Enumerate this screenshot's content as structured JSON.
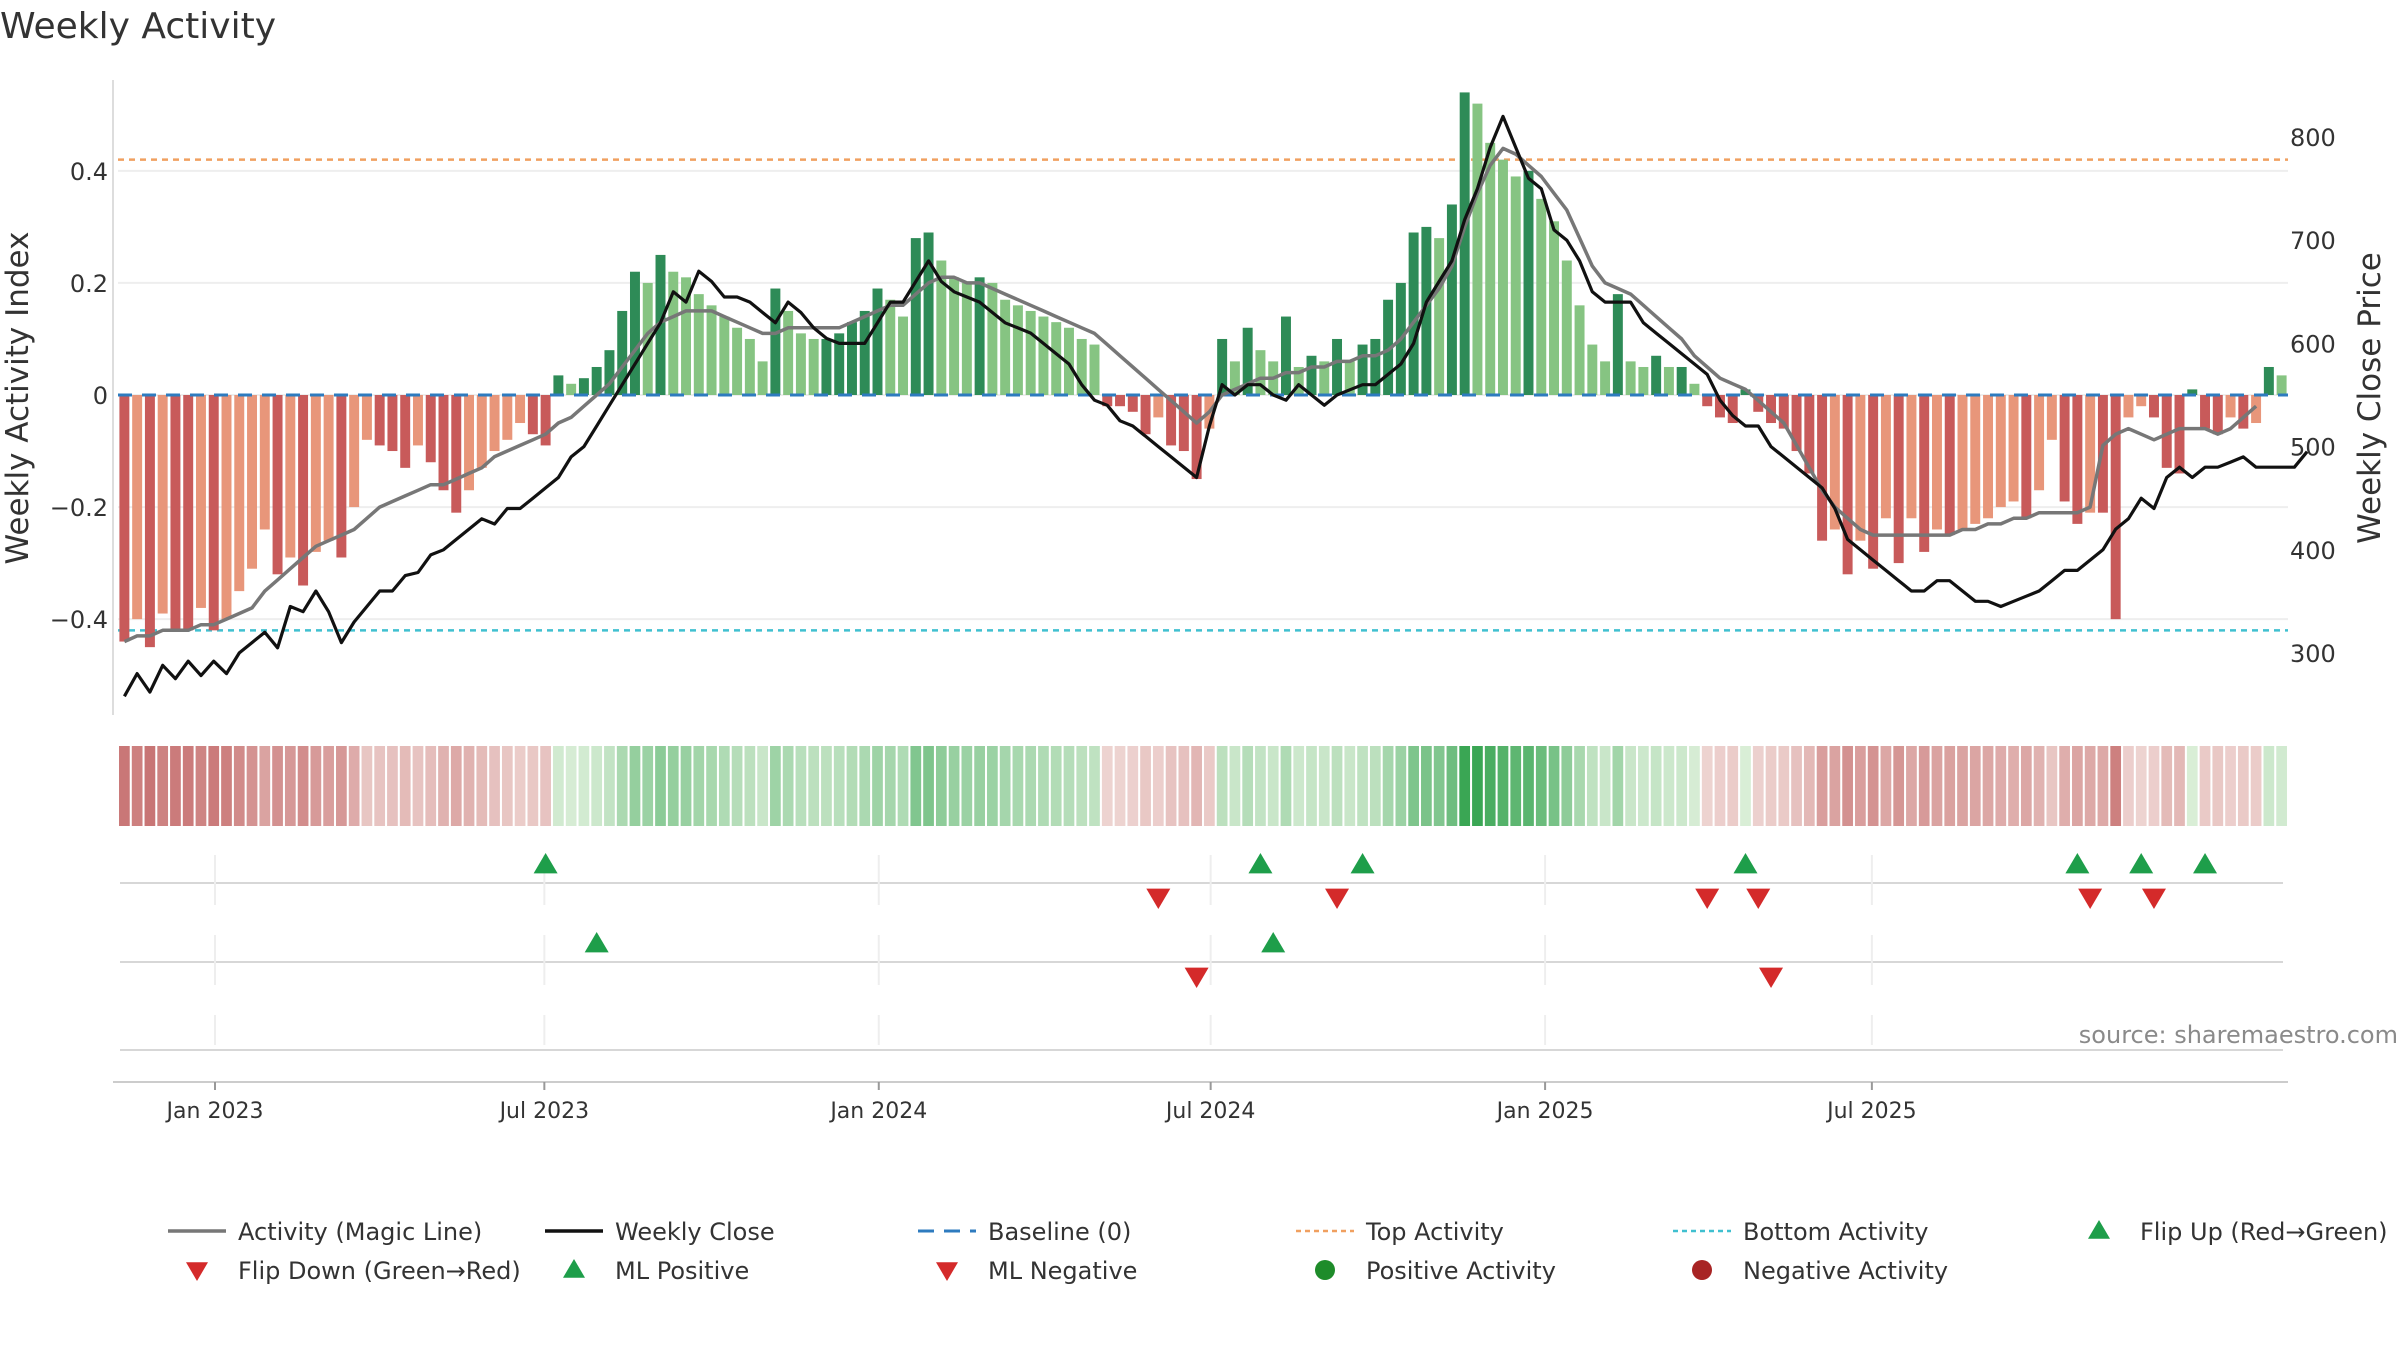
{
  "chart_data": {
    "type": "bar",
    "title": "Weekly Activity",
    "ylabel": "Weekly Activity Index",
    "y2label": "Weekly Close Price",
    "ylim": [
      -0.58,
      0.58
    ],
    "y2lim": [
      235,
      865
    ],
    "yticks": [
      {
        "v": 0.4,
        "t": "0.4"
      },
      {
        "v": 0.2,
        "t": "0.2"
      },
      {
        "v": 0,
        "t": "0"
      },
      {
        "v": -0.2,
        "t": "−0.2"
      },
      {
        "v": -0.4,
        "t": "−0.4"
      }
    ],
    "y2ticks": [
      {
        "v": 800,
        "t": "800"
      },
      {
        "v": 700,
        "t": "700"
      },
      {
        "v": 600,
        "t": "600"
      },
      {
        "v": 500,
        "t": "500"
      },
      {
        "v": 400,
        "t": "400"
      },
      {
        "v": 300,
        "t": "300"
      }
    ],
    "xticks": [
      {
        "w": 7.1,
        "t": "Jan 2023"
      },
      {
        "w": 32.9,
        "t": "Jul 2023"
      },
      {
        "w": 59.1,
        "t": "Jan 2024"
      },
      {
        "w": 85.1,
        "t": "Jul 2024"
      },
      {
        "w": 111.3,
        "t": "Jan 2025"
      },
      {
        "w": 136.9,
        "t": "Jul 2025"
      }
    ],
    "top_activity": 0.42,
    "bottom_activity": -0.42,
    "baseline": 0,
    "activity": [
      -0.44,
      -0.4,
      -0.45,
      -0.39,
      -0.42,
      -0.42,
      -0.38,
      -0.42,
      -0.4,
      -0.35,
      -0.31,
      -0.24,
      -0.32,
      -0.29,
      -0.34,
      -0.28,
      -0.26,
      -0.29,
      -0.2,
      -0.08,
      -0.09,
      -0.1,
      -0.13,
      -0.09,
      -0.12,
      -0.17,
      -0.21,
      -0.17,
      -0.13,
      -0.1,
      -0.08,
      -0.05,
      -0.07,
      -0.09,
      0.035,
      0.02,
      0.03,
      0.05,
      0.08,
      0.15,
      0.22,
      0.2,
      0.25,
      0.22,
      0.21,
      0.18,
      0.16,
      0.14,
      0.12,
      0.1,
      0.06,
      0.19,
      0.15,
      0.11,
      0.1,
      0.1,
      0.11,
      0.13,
      0.15,
      0.19,
      0.17,
      0.14,
      0.28,
      0.29,
      0.24,
      0.21,
      0.2,
      0.21,
      0.2,
      0.17,
      0.16,
      0.15,
      0.14,
      0.13,
      0.12,
      0.1,
      0.09,
      -0.02,
      -0.02,
      -0.03,
      -0.07,
      -0.04,
      -0.09,
      -0.1,
      -0.15,
      -0.06,
      0.1,
      0.06,
      0.12,
      0.08,
      0.06,
      0.14,
      0.05,
      0.07,
      0.06,
      0.1,
      0.06,
      0.09,
      0.1,
      0.17,
      0.2,
      0.29,
      0.3,
      0.28,
      0.34,
      0.54,
      0.52,
      0.45,
      0.42,
      0.39,
      0.4,
      0.35,
      0.31,
      0.24,
      0.16,
      0.09,
      0.06,
      0.18,
      0.06,
      0.05,
      0.07,
      0.05,
      0.05,
      0.02,
      -0.02,
      -0.04,
      -0.05,
      0.01,
      -0.03,
      -0.05,
      -0.06,
      -0.1,
      -0.14,
      -0.26,
      -0.24,
      -0.32,
      -0.26,
      -0.31,
      -0.22,
      -0.3,
      -0.22,
      -0.28,
      -0.24,
      -0.25,
      -0.24,
      -0.23,
      -0.22,
      -0.2,
      -0.19,
      -0.22,
      -0.17,
      -0.08,
      -0.19,
      -0.23,
      -0.21,
      -0.21,
      -0.4,
      -0.04,
      -0.02,
      -0.04,
      -0.13,
      -0.14,
      0.01,
      -0.06,
      -0.07,
      -0.04,
      -0.06,
      -0.05,
      0.05,
      0.035
    ],
    "series": [
      {
        "name": "Weekly Close",
        "values": [
          258,
          280,
          262,
          288,
          275,
          292,
          278,
          292,
          280,
          300,
          310,
          320,
          305,
          345,
          340,
          360,
          340,
          310,
          330,
          345,
          360,
          360,
          375,
          378,
          395,
          400,
          410,
          420,
          430,
          425,
          440,
          440,
          450,
          460,
          470,
          490,
          500,
          520,
          540,
          560,
          580,
          600,
          620,
          650,
          640,
          670,
          660,
          645,
          645,
          640,
          630,
          620,
          640,
          630,
          615,
          605,
          600,
          600,
          600,
          620,
          640,
          640,
          660,
          680,
          660,
          650,
          645,
          640,
          630,
          620,
          615,
          610,
          600,
          590,
          580,
          560,
          545,
          540,
          525,
          520,
          510,
          500,
          490,
          480,
          470,
          520,
          560,
          550,
          560,
          560,
          550,
          545,
          560,
          550,
          540,
          550,
          555,
          560,
          560,
          570,
          580,
          600,
          640,
          660,
          680,
          720,
          750,
          790,
          820,
          790,
          760,
          750,
          710,
          700,
          680,
          650,
          640,
          640,
          640,
          620,
          610,
          600,
          590,
          580,
          570,
          545,
          530,
          520,
          520,
          500,
          490,
          480,
          470,
          460,
          440,
          410,
          400,
          390,
          380,
          370,
          360,
          360,
          370,
          370,
          360,
          350,
          350,
          345,
          350,
          355,
          360,
          370,
          380,
          380,
          390,
          400,
          420,
          430,
          450,
          440,
          470,
          480,
          470,
          480,
          480,
          485,
          490,
          480,
          480,
          480,
          480,
          495
        ],
        "color": "#111111"
      },
      {
        "name": "Activity (Magic Line)",
        "values": [
          -0.44,
          -0.43,
          -0.43,
          -0.42,
          -0.42,
          -0.42,
          -0.41,
          -0.41,
          -0.4,
          -0.39,
          -0.38,
          -0.35,
          -0.33,
          -0.31,
          -0.29,
          -0.27,
          -0.26,
          -0.25,
          -0.24,
          -0.22,
          -0.2,
          -0.19,
          -0.18,
          -0.17,
          -0.16,
          -0.16,
          -0.15,
          -0.14,
          -0.13,
          -0.11,
          -0.1,
          -0.09,
          -0.08,
          -0.07,
          -0.05,
          -0.04,
          -0.02,
          0.0,
          0.02,
          0.05,
          0.08,
          0.11,
          0.13,
          0.14,
          0.15,
          0.15,
          0.15,
          0.14,
          0.13,
          0.12,
          0.11,
          0.11,
          0.12,
          0.12,
          0.12,
          0.12,
          0.12,
          0.13,
          0.14,
          0.15,
          0.16,
          0.16,
          0.18,
          0.2,
          0.21,
          0.21,
          0.2,
          0.2,
          0.19,
          0.18,
          0.17,
          0.16,
          0.15,
          0.14,
          0.13,
          0.12,
          0.11,
          0.09,
          0.07,
          0.05,
          0.03,
          0.01,
          -0.01,
          -0.03,
          -0.05,
          -0.03,
          0.0,
          0.01,
          0.02,
          0.03,
          0.03,
          0.04,
          0.04,
          0.05,
          0.05,
          0.06,
          0.06,
          0.07,
          0.07,
          0.08,
          0.1,
          0.13,
          0.16,
          0.19,
          0.23,
          0.3,
          0.36,
          0.41,
          0.44,
          0.43,
          0.41,
          0.39,
          0.36,
          0.33,
          0.28,
          0.23,
          0.2,
          0.19,
          0.18,
          0.16,
          0.14,
          0.12,
          0.1,
          0.07,
          0.05,
          0.03,
          0.02,
          0.01,
          -0.01,
          -0.03,
          -0.05,
          -0.09,
          -0.13,
          -0.17,
          -0.2,
          -0.22,
          -0.24,
          -0.25,
          -0.25,
          -0.25,
          -0.25,
          -0.25,
          -0.25,
          -0.25,
          -0.24,
          -0.24,
          -0.23,
          -0.23,
          -0.22,
          -0.22,
          -0.21,
          -0.21,
          -0.21,
          -0.21,
          -0.2,
          -0.09,
          -0.07,
          -0.06,
          -0.07,
          -0.08,
          -0.07,
          -0.06,
          -0.06,
          -0.06,
          -0.07,
          -0.06,
          -0.04,
          -0.02
        ],
        "color": "#777777"
      }
    ],
    "flip_up": [
      33,
      89,
      97,
      127,
      153,
      158,
      163
    ],
    "flip_down": [
      81,
      95,
      124,
      128,
      154,
      159
    ],
    "ml_positive": [
      37,
      90
    ],
    "ml_negative": [
      84,
      129
    ],
    "source": "source: sharemaestro.com",
    "legend": [
      {
        "label": "Activity (Magic Line)",
        "kind": "line",
        "color": "#777777"
      },
      {
        "label": "Weekly Close",
        "kind": "line",
        "color": "#111111"
      },
      {
        "label": "Baseline (0)",
        "kind": "dash",
        "color": "#2e7bbf"
      },
      {
        "label": "Top Activity",
        "kind": "dot",
        "color": "#f0a060"
      },
      {
        "label": "Bottom Activity",
        "kind": "dot",
        "color": "#40c0d0"
      },
      {
        "label": "Flip Up (Red→Green)",
        "kind": "up",
        "color": "#1e9e4a"
      },
      {
        "label": "Flip Down (Green→Red)",
        "kind": "down",
        "color": "#d42a2a"
      },
      {
        "label": "ML Positive",
        "kind": "up",
        "color": "#1e9e4a"
      },
      {
        "label": "ML Negative",
        "kind": "down",
        "color": "#d42a2a"
      },
      {
        "label": "Positive Activity",
        "kind": "circle",
        "color": "#1e8c2a"
      },
      {
        "label": "Negative Activity",
        "kind": "circle",
        "color": "#a82424"
      }
    ],
    "colors": {
      "pos_dark": "#2e8b57",
      "pos_light": "#86c482",
      "neg_dark": "#c85a5a",
      "neg_light": "#e8967a"
    }
  }
}
